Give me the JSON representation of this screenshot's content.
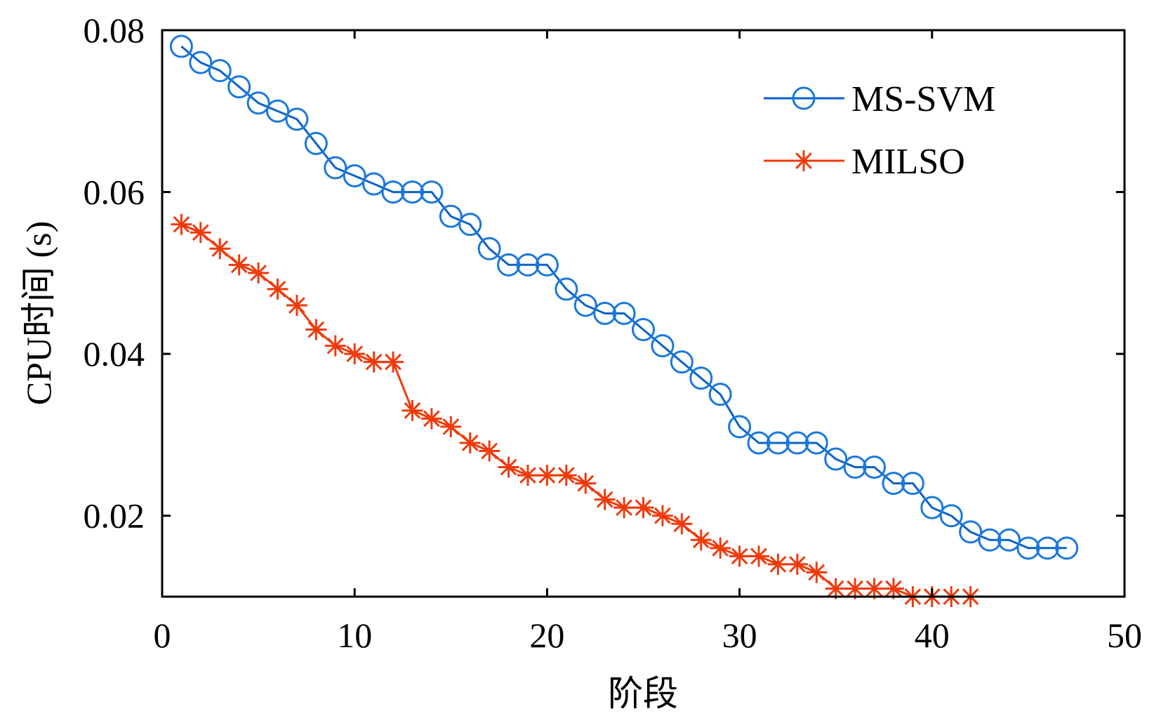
{
  "chart_data": {
    "type": "line",
    "title": "",
    "xlabel": "阶段",
    "ylabel": "CPU时间 (s)",
    "xlim": [
      0,
      50
    ],
    "ylim": [
      0.01,
      0.08
    ],
    "xticks": [
      0,
      10,
      20,
      30,
      40,
      50
    ],
    "xtick_labels": [
      "0",
      "10",
      "20",
      "30",
      "40",
      "50"
    ],
    "yticks": [
      0.02,
      0.04,
      0.06,
      0.08
    ],
    "ytick_labels": [
      "0.02",
      "0.04",
      "0.06",
      "0.08"
    ],
    "grid": false,
    "legend_position": "top-right",
    "series": [
      {
        "name": "MS-SVM",
        "color": "#0a62c9",
        "marker_color": "#1a78dc",
        "marker": "circle",
        "x": [
          1,
          2,
          3,
          4,
          5,
          6,
          7,
          8,
          9,
          10,
          11,
          12,
          13,
          14,
          15,
          16,
          17,
          18,
          19,
          20,
          21,
          22,
          23,
          24,
          25,
          26,
          27,
          28,
          29,
          30,
          31,
          32,
          33,
          34,
          35,
          36,
          37,
          38,
          39,
          40,
          41,
          42,
          43,
          44,
          45,
          46,
          47
        ],
        "values": [
          0.078,
          0.076,
          0.075,
          0.073,
          0.071,
          0.07,
          0.069,
          0.066,
          0.063,
          0.062,
          0.061,
          0.06,
          0.06,
          0.06,
          0.057,
          0.056,
          0.053,
          0.051,
          0.051,
          0.051,
          0.048,
          0.046,
          0.045,
          0.045,
          0.043,
          0.041,
          0.039,
          0.037,
          0.035,
          0.031,
          0.029,
          0.029,
          0.029,
          0.029,
          0.027,
          0.026,
          0.026,
          0.024,
          0.024,
          0.021,
          0.02,
          0.018,
          0.017,
          0.017,
          0.016,
          0.016,
          0.016
        ]
      },
      {
        "name": "MILSO",
        "color": "#f03a0c",
        "marker_color": "#f03a0c",
        "marker": "asterisk",
        "x": [
          1,
          2,
          3,
          4,
          5,
          6,
          7,
          8,
          9,
          10,
          11,
          12,
          13,
          14,
          15,
          16,
          17,
          18,
          19,
          20,
          21,
          22,
          23,
          24,
          25,
          26,
          27,
          28,
          29,
          30,
          31,
          32,
          33,
          34,
          35,
          36,
          37,
          38,
          39,
          40,
          41,
          42
        ],
        "values": [
          0.056,
          0.055,
          0.053,
          0.051,
          0.05,
          0.048,
          0.046,
          0.043,
          0.041,
          0.04,
          0.039,
          0.039,
          0.033,
          0.032,
          0.031,
          0.029,
          0.028,
          0.026,
          0.025,
          0.025,
          0.025,
          0.024,
          0.022,
          0.021,
          0.021,
          0.02,
          0.019,
          0.017,
          0.016,
          0.015,
          0.015,
          0.014,
          0.014,
          0.013,
          0.011,
          0.011,
          0.011,
          0.011,
          0.01,
          0.01,
          0.01,
          0.01
        ]
      }
    ]
  }
}
